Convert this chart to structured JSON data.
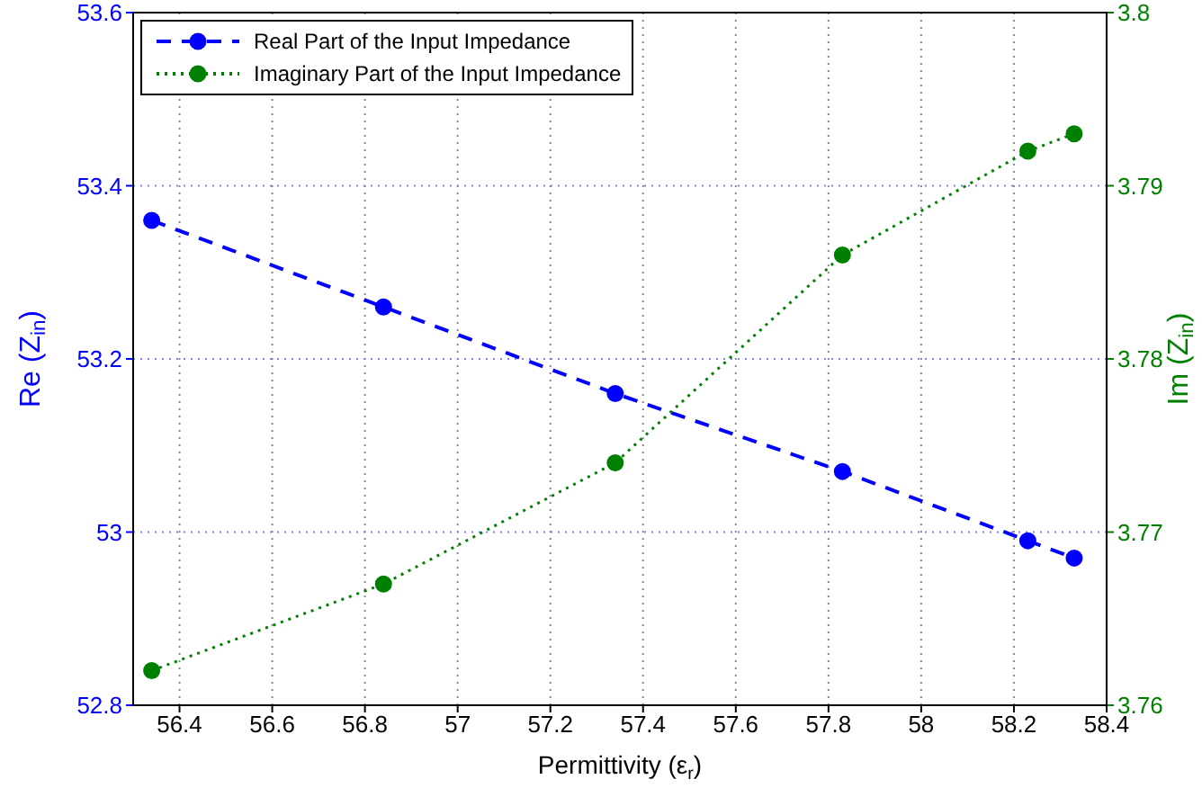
{
  "chart_data": {
    "type": "line",
    "xlabel": "Permittivity (ε$_{r}$)",
    "ylabel": "Re (Z$_{in}$)",
    "y2label": "Im (Z$_{in}$)",
    "xlim": [
      56.3,
      58.4
    ],
    "xticks": [
      56.4,
      56.6,
      56.8,
      57,
      57.2,
      57.4,
      57.6,
      57.8,
      58,
      58.2,
      58.4
    ],
    "ylim": [
      52.8,
      53.6
    ],
    "yticks": [
      52.8,
      53,
      53.2,
      53.4,
      53.6
    ],
    "y2lim": [
      3.76,
      3.8
    ],
    "y2ticks": [
      3.76,
      3.77,
      3.78,
      3.79,
      3.8
    ],
    "grid": true,
    "legend": "top left",
    "series": [
      {
        "name": "Real Part of the Input Impedance",
        "color": "#0000ff",
        "marker": "circle",
        "line_style": "dashed",
        "x": [
          56.34,
          56.84,
          57.34,
          57.83,
          58.23,
          58.33
        ],
        "values": [
          53.36,
          53.26,
          53.16,
          53.07,
          52.99,
          52.97
        ]
      },
      {
        "name": "Imaginary Part of the Input Impedance",
        "color": "#008000",
        "marker": "circle",
        "line_style": "dotted",
        "axis": "y2",
        "x": [
          56.34,
          56.84,
          57.34,
          57.83,
          58.23,
          58.33
        ],
        "values": [
          3.762,
          3.767,
          3.774,
          3.786,
          3.792,
          3.793
        ]
      }
    ]
  }
}
